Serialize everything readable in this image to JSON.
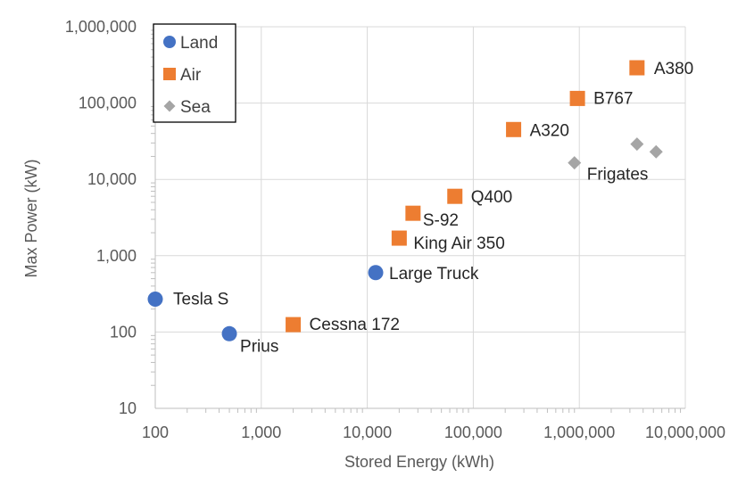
{
  "chart_data": {
    "type": "scatter",
    "title": "",
    "xlabel": "Stored Energy (kWh)",
    "ylabel": "Max Power (kW)",
    "xscale": "log",
    "yscale": "log",
    "xlim": [
      100,
      10000000
    ],
    "ylim": [
      10,
      1000000
    ],
    "x_ticks": [
      "100",
      "1,000",
      "10,000",
      "100,000",
      "1,000,000",
      "10,000,000"
    ],
    "y_ticks": [
      "10",
      "100",
      "1,000",
      "10,000",
      "100,000",
      "1,000,000"
    ],
    "grid": true,
    "legend_position": "top-left",
    "series": [
      {
        "name": "Land",
        "marker": "circle",
        "color": "#4472C4",
        "points": [
          {
            "x": 100,
            "y": 270,
            "label": "Tesla S"
          },
          {
            "x": 500,
            "y": 95,
            "label": "Prius"
          },
          {
            "x": 12000,
            "y": 600,
            "label": "Large Truck"
          }
        ]
      },
      {
        "name": "Air",
        "marker": "square",
        "color": "#ED7D31",
        "points": [
          {
            "x": 2000,
            "y": 125,
            "label": "Cessna 172"
          },
          {
            "x": 20000,
            "y": 1700,
            "label": "King Air 350"
          },
          {
            "x": 27000,
            "y": 3600,
            "label": "S-92"
          },
          {
            "x": 67000,
            "y": 6000,
            "label": "Q400"
          },
          {
            "x": 240000,
            "y": 45000,
            "label": "A320"
          },
          {
            "x": 960000,
            "y": 115000,
            "label": "B767"
          },
          {
            "x": 3500000,
            "y": 290000,
            "label": "A380"
          }
        ]
      },
      {
        "name": "Sea",
        "marker": "diamond",
        "color": "#A5A5A5",
        "points": [
          {
            "x": 900000,
            "y": 16500,
            "label": ""
          },
          {
            "x": 3500000,
            "y": 29000,
            "label": ""
          },
          {
            "x": 5300000,
            "y": 23000,
            "label": ""
          }
        ],
        "group_label": "Frigates"
      }
    ]
  }
}
